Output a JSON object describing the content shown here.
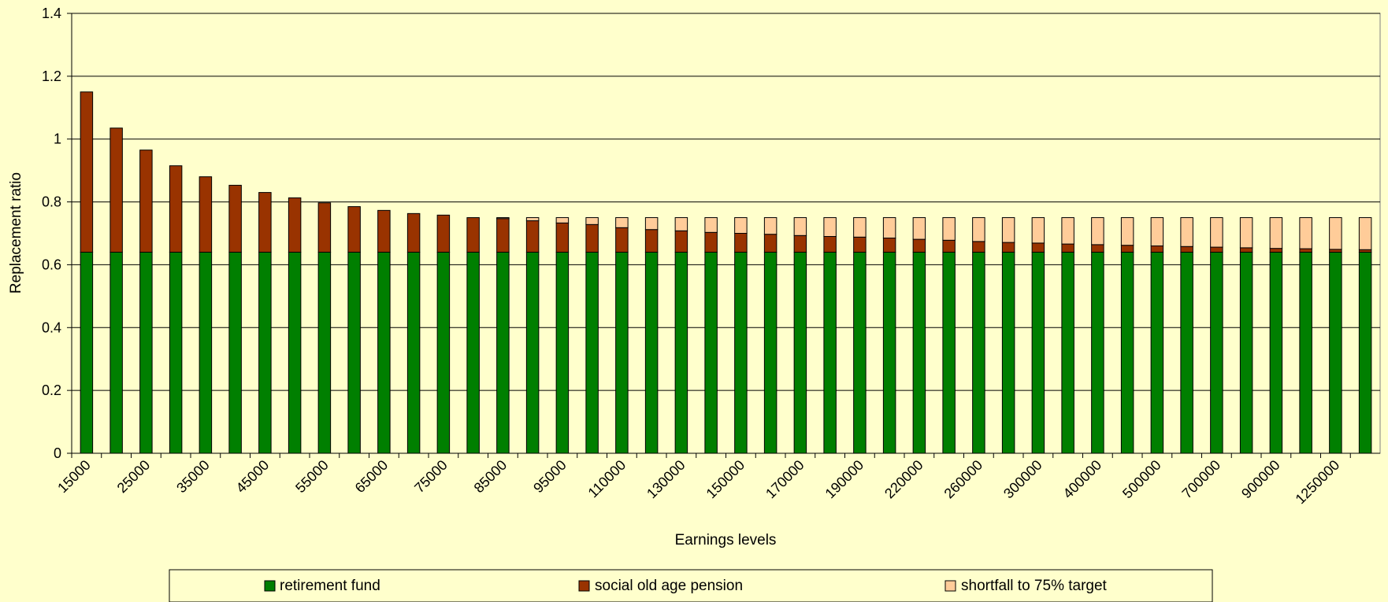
{
  "chart_data": {
    "type": "bar",
    "stacked": true,
    "xlabel": "Earnings levels",
    "ylabel": "Replacement ratio",
    "ylim": [
      0,
      1.4
    ],
    "yticks": [
      "0",
      "0.2",
      "0.4",
      "0.6",
      "0.8",
      "1",
      "1.2",
      "1.4"
    ],
    "grid": true,
    "legend_position": "bottom",
    "categories": [
      "15000",
      "20000",
      "25000",
      "30000",
      "35000",
      "40000",
      "45000",
      "50000",
      "55000",
      "60000",
      "65000",
      "70000",
      "75000",
      "80000",
      "85000",
      "90000",
      "95000",
      "100000",
      "110000",
      "120000",
      "130000",
      "140000",
      "150000",
      "160000",
      "170000",
      "180000",
      "190000",
      "200000",
      "220000",
      "240000",
      "260000",
      "280000",
      "300000",
      "350000",
      "400000",
      "450000",
      "500000",
      "600000",
      "700000",
      "800000",
      "900000",
      "1000000",
      "1250000",
      "1500000"
    ],
    "category_labels_shown": [
      "15000",
      "25000",
      "35000",
      "45000",
      "55000",
      "65000",
      "75000",
      "85000",
      "95000",
      "110000",
      "130000",
      "150000",
      "170000",
      "190000",
      "220000",
      "260000",
      "300000",
      "400000",
      "500000",
      "700000",
      "900000",
      "1250000"
    ],
    "series": [
      {
        "name": "retirement fund",
        "color": "#007F00",
        "values": [
          0.64,
          0.64,
          0.64,
          0.64,
          0.64,
          0.64,
          0.64,
          0.64,
          0.64,
          0.64,
          0.64,
          0.64,
          0.64,
          0.64,
          0.64,
          0.64,
          0.64,
          0.64,
          0.64,
          0.64,
          0.64,
          0.64,
          0.64,
          0.64,
          0.64,
          0.64,
          0.64,
          0.64,
          0.64,
          0.64,
          0.64,
          0.64,
          0.64,
          0.64,
          0.64,
          0.64,
          0.64,
          0.64,
          0.64,
          0.64,
          0.64,
          0.64,
          0.64,
          0.64
        ]
      },
      {
        "name": "social old age pension",
        "color": "#993300",
        "values": [
          0.51,
          0.395,
          0.325,
          0.275,
          0.24,
          0.213,
          0.19,
          0.173,
          0.157,
          0.145,
          0.133,
          0.123,
          0.118,
          0.11,
          0.107,
          0.1,
          0.093,
          0.088,
          0.078,
          0.072,
          0.068,
          0.063,
          0.06,
          0.057,
          0.053,
          0.05,
          0.048,
          0.045,
          0.041,
          0.038,
          0.034,
          0.031,
          0.029,
          0.026,
          0.024,
          0.022,
          0.02,
          0.018,
          0.016,
          0.014,
          0.012,
          0.011,
          0.009,
          0.008
        ]
      },
      {
        "name": "shortfall to 75% target",
        "color": "#FFCC99",
        "values": [
          0,
          0,
          0,
          0,
          0,
          0,
          0,
          0,
          0,
          0,
          0,
          0,
          0,
          0,
          0.003,
          0.01,
          0.017,
          0.022,
          0.032,
          0.038,
          0.042,
          0.047,
          0.05,
          0.053,
          0.057,
          0.06,
          0.062,
          0.065,
          0.069,
          0.072,
          0.076,
          0.079,
          0.081,
          0.084,
          0.086,
          0.088,
          0.09,
          0.092,
          0.094,
          0.096,
          0.098,
          0.099,
          0.101,
          0.102
        ]
      }
    ]
  }
}
